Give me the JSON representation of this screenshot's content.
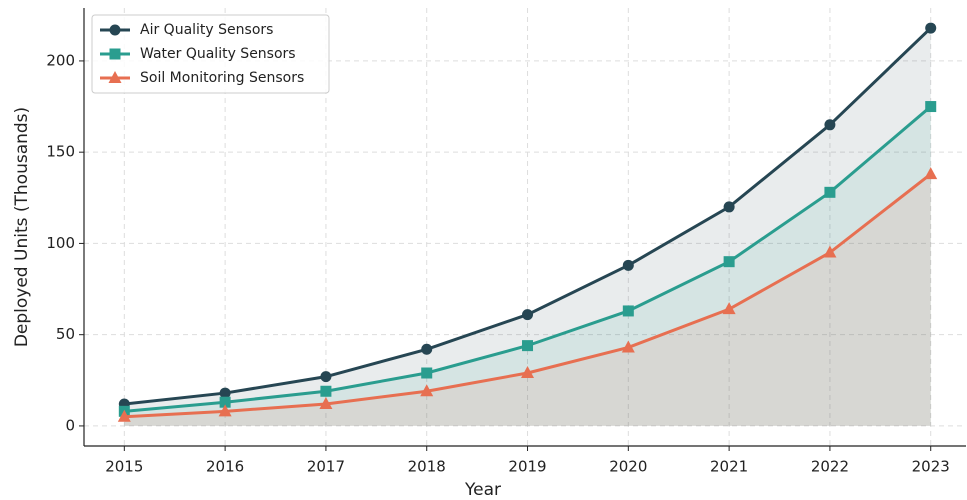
{
  "chart_data": {
    "type": "line",
    "x_label": "Year",
    "y_label": "Deployed Units (Thousands)",
    "x": [
      2015,
      2016,
      2017,
      2018,
      2019,
      2020,
      2021,
      2022,
      2023
    ],
    "series": [
      {
        "name": "Air Quality Sensors",
        "color": "#264653",
        "marker": "circle",
        "values": [
          12,
          18,
          27,
          42,
          61,
          88,
          120,
          165,
          218
        ]
      },
      {
        "name": "Water Quality Sensors",
        "color": "#2a9d8f",
        "marker": "square",
        "values": [
          8,
          13,
          19,
          29,
          44,
          63,
          90,
          128,
          175
        ]
      },
      {
        "name": "Soil Monitoring Sensors",
        "color": "#e76f51",
        "marker": "triangle",
        "values": [
          5,
          8,
          12,
          19,
          29,
          43,
          64,
          95,
          138
        ]
      }
    ],
    "xlim": [
      2014.6,
      2023.35
    ],
    "xticks": [
      2015,
      2016,
      2017,
      2018,
      2019,
      2020,
      2021,
      2022,
      2023
    ],
    "ylim": [
      -11,
      229
    ],
    "yticks": [
      0,
      50,
      100,
      150,
      200
    ],
    "grid": true,
    "fill_area": true,
    "legend": "upper left"
  }
}
